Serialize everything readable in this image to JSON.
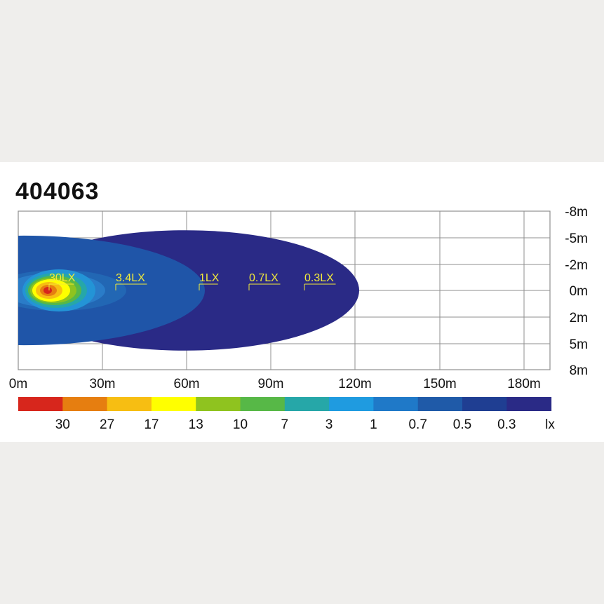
{
  "title": "404063",
  "colors": {
    "background": "#efeeec",
    "panel": "#ffffff",
    "grid": "#8f8f8f",
    "label_text": "#f2ea3a"
  },
  "chart_data": {
    "type": "heatmap",
    "title": "404063",
    "x_ticks": [
      "0m",
      "30m",
      "60m",
      "90m",
      "120m",
      "150m",
      "180m"
    ],
    "y_ticks": [
      "-8m",
      "-5m",
      "-2m",
      "0m",
      "2m",
      "5m",
      "8m"
    ],
    "x_values": [
      0,
      30,
      60,
      90,
      120,
      150,
      180
    ],
    "y_values": [
      -8,
      -5,
      -2,
      0,
      2,
      5,
      8
    ],
    "grid": true,
    "contours": [
      {
        "label": "0.3LX",
        "lux": 0.3,
        "distance": 119,
        "half_width": 5.5,
        "color": "#2a2a86"
      },
      {
        "label": "0.7LX",
        "lux": 0.7,
        "distance": 90,
        "color": "#2a2a86"
      },
      {
        "label": "1LX",
        "lux": 1,
        "distance": 67,
        "half_width": 5.5,
        "color": "#1f55a8"
      },
      {
        "label": "3.4LX",
        "lux": 3.4,
        "distance": 38,
        "half_width": 2.2,
        "color": "#2a73c4"
      },
      {
        "label": "30LX",
        "lux": 30,
        "distance": 25,
        "half_width": 1.5,
        "color": "#ffff00"
      }
    ],
    "legend": {
      "unit": "lx",
      "items": [
        {
          "value": "30",
          "color": "#d7261c"
        },
        {
          "value": "27",
          "color": "#e67e10"
        },
        {
          "value": "17",
          "color": "#f7be12"
        },
        {
          "value": "13",
          "color": "#ffff00"
        },
        {
          "value": "10",
          "color": "#8fc31f"
        },
        {
          "value": "7",
          "color": "#57b847"
        },
        {
          "value": "3",
          "color": "#26a7a8"
        },
        {
          "value": "1",
          "color": "#1f9be0"
        },
        {
          "value": "0.7",
          "color": "#1f79c8"
        },
        {
          "value": "0.5",
          "color": "#1f5aa8"
        },
        {
          "value": "0.3",
          "color": "#1f3e92"
        },
        {
          "value": "",
          "color": "#2a2a86"
        }
      ]
    }
  }
}
